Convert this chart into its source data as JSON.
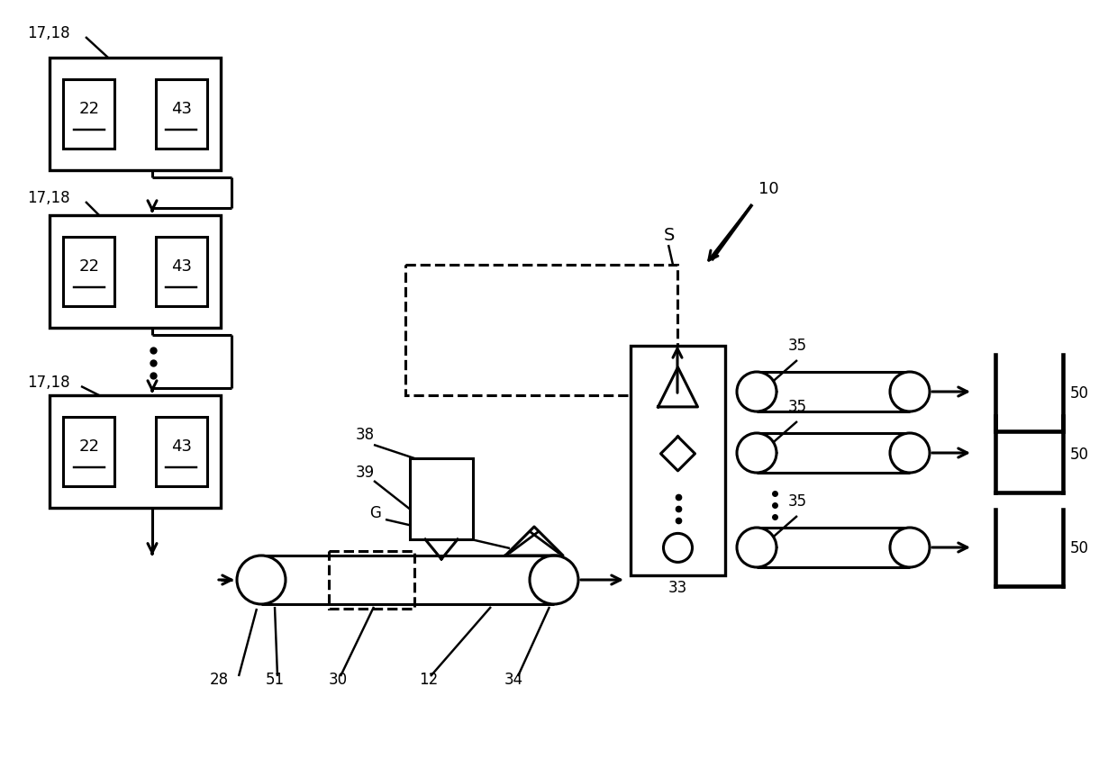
{
  "bg_color": "#ffffff",
  "lc": "#000000",
  "lw": 2.2,
  "figsize": [
    12.4,
    8.54
  ],
  "dpi": 100
}
